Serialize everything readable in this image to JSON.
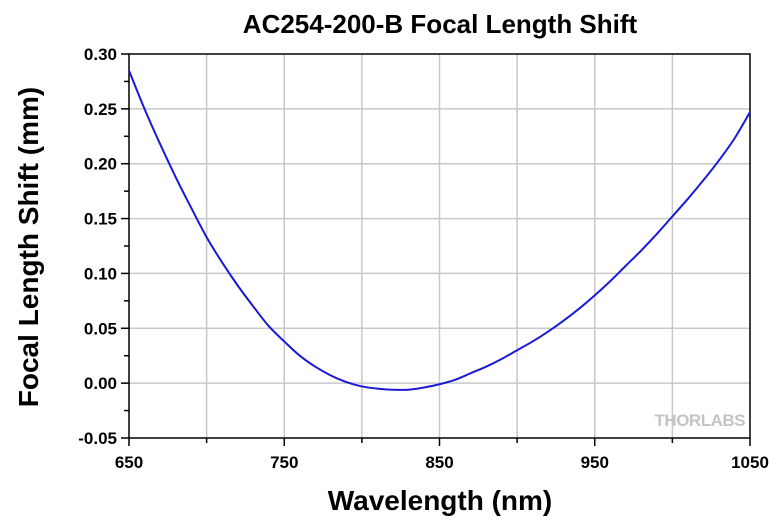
{
  "chart_data": {
    "type": "line",
    "title": "AC254-200-B Focal Length Shift",
    "xlabel": "Wavelength (nm)",
    "ylabel": "Focal Length Shift (mm)",
    "xlim": [
      650,
      1050
    ],
    "ylim": [
      -0.05,
      0.3
    ],
    "xticks": [
      "650",
      "750",
      "850",
      "950",
      "1050"
    ],
    "xtick_values": [
      650,
      750,
      850,
      950,
      1050
    ],
    "yticks": [
      "-0.05",
      "0.00",
      "0.05",
      "0.10",
      "0.15",
      "0.20",
      "0.25",
      "0.30"
    ],
    "ytick_values": [
      -0.05,
      0.0,
      0.05,
      0.1,
      0.15,
      0.2,
      0.25,
      0.3
    ],
    "grid": true,
    "line_color": "#1a1ad6",
    "series": [
      {
        "name": "",
        "x": [
          650,
          660,
          670,
          680,
          690,
          700,
          710,
          720,
          730,
          740,
          750,
          760,
          770,
          780,
          790,
          800,
          810,
          820,
          830,
          840,
          850,
          860,
          870,
          880,
          890,
          900,
          910,
          920,
          930,
          940,
          950,
          960,
          970,
          980,
          990,
          1000,
          1010,
          1020,
          1030,
          1040,
          1050
        ],
        "y": [
          0.285,
          0.25,
          0.218,
          0.188,
          0.16,
          0.133,
          0.11,
          0.089,
          0.07,
          0.052,
          0.038,
          0.025,
          0.015,
          0.007,
          0.001,
          -0.003,
          -0.005,
          -0.006,
          -0.006,
          -0.004,
          -0.001,
          0.003,
          0.009,
          0.015,
          0.022,
          0.03,
          0.038,
          0.047,
          0.057,
          0.068,
          0.08,
          0.093,
          0.107,
          0.121,
          0.136,
          0.152,
          0.168,
          0.185,
          0.203,
          0.223,
          0.247
        ]
      }
    ]
  },
  "watermark": {
    "text": "THORLABS"
  }
}
